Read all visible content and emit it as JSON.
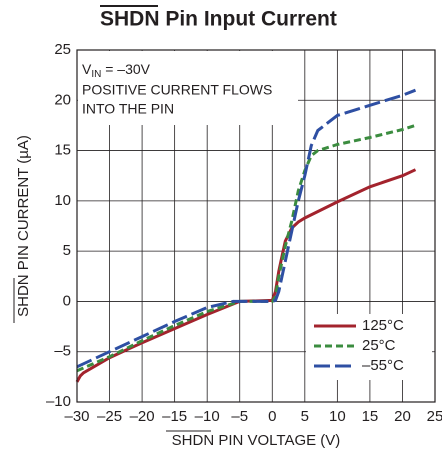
{
  "chart_data": {
    "type": "line",
    "title": "SHDN Pin Input Current",
    "x_label": "SHDN PIN VOLTAGE (V)",
    "y_label": "SHDN PIN CURRENT (µA)",
    "condition": {
      "base": "V",
      "sub": "IN",
      "rest": " = –30V"
    },
    "annotations": [
      "POSITIVE CURRENT FLOWS",
      "INTO THE PIN"
    ],
    "xlim": [
      -30,
      25
    ],
    "ylim": [
      -10,
      25
    ],
    "xticks": [
      {
        "value": -30,
        "label": "–30"
      },
      {
        "value": -25,
        "label": "–25"
      },
      {
        "value": -20,
        "label": "–20"
      },
      {
        "value": -15,
        "label": "–15"
      },
      {
        "value": -10,
        "label": "–10"
      },
      {
        "value": -5,
        "label": "–5"
      },
      0,
      5,
      10,
      15,
      20,
      25
    ],
    "yticks": [
      {
        "value": -10,
        "label": "–10"
      },
      {
        "value": -5,
        "label": "–5"
      },
      0,
      5,
      10,
      15,
      20,
      25
    ],
    "grid": true,
    "legend": "lower right",
    "series": [
      {
        "name": "125°C",
        "color": "#a3232d",
        "dash": "none",
        "x": [
          -30,
          -29.5,
          -29,
          -25,
          -20,
          -15,
          -10,
          -5,
          0,
          0.5,
          1,
          1.5,
          2,
          3,
          4,
          5,
          10,
          15,
          20,
          22
        ],
        "values": [
          -8,
          -7.4,
          -7.1,
          -5.6,
          -4.1,
          -2.7,
          -1.3,
          0,
          0.1,
          1,
          3,
          4.5,
          6,
          7.3,
          7.9,
          8.3,
          9.9,
          11.4,
          12.5,
          13.1
        ]
      },
      {
        "name": "25°C",
        "color": "#3b8c3f",
        "dash": "7 4",
        "x": [
          -30,
          -25,
          -20,
          -15,
          -10,
          -5,
          0,
          0.5,
          1,
          2,
          3,
          4,
          5,
          6,
          7,
          10,
          15,
          20,
          22
        ],
        "values": [
          -6.9,
          -5.5,
          -3.9,
          -2.4,
          -1.0,
          0,
          0,
          0.5,
          2.5,
          5.5,
          8,
          11,
          13,
          14.5,
          15,
          15.6,
          16.3,
          17.1,
          17.5
        ]
      },
      {
        "name": "–55°C",
        "color": "#2e4fa3",
        "dash": "16 5",
        "x": [
          -30,
          -25,
          -20,
          -15,
          -10,
          -6,
          0,
          0.5,
          1,
          2,
          3,
          4,
          5,
          6,
          7,
          10,
          15,
          20,
          22
        ],
        "values": [
          -6.5,
          -5.0,
          -3.5,
          -2.0,
          -0.6,
          0,
          0,
          0.1,
          1,
          4,
          7,
          10,
          12.5,
          15.5,
          17,
          18.5,
          19.5,
          20.5,
          21
        ]
      }
    ]
  }
}
